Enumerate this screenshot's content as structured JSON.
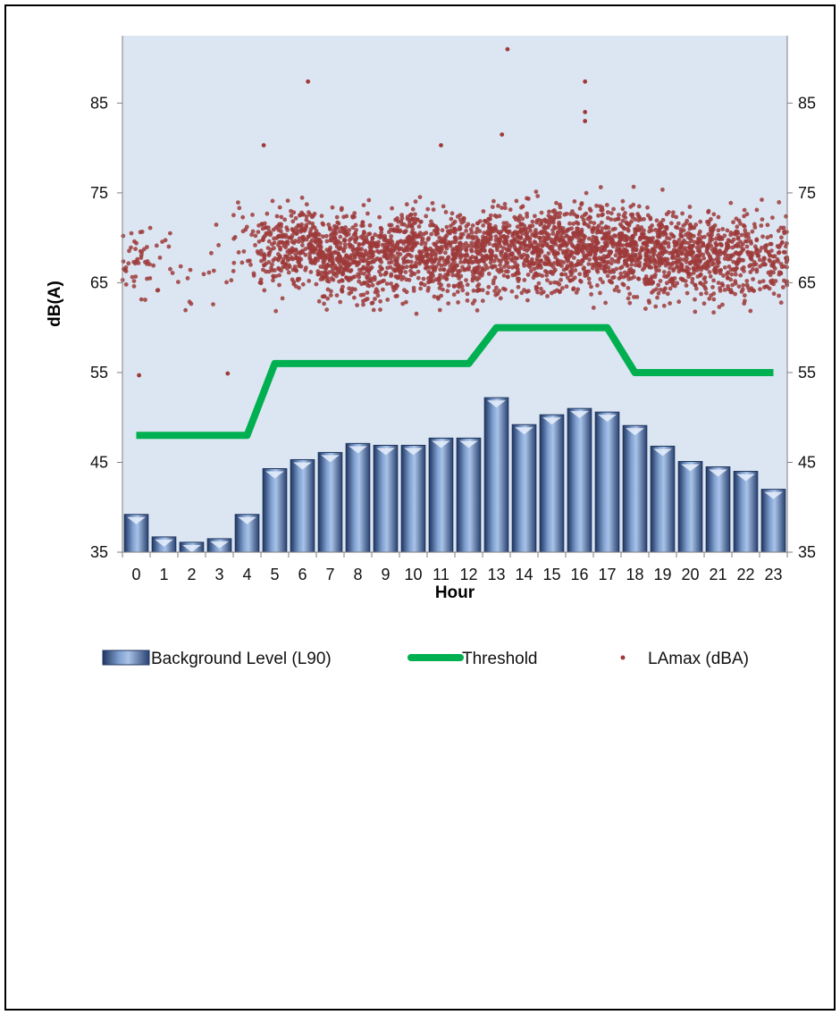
{
  "chart_data": {
    "type": "bar",
    "xlabel": "Hour",
    "ylabel": "dB(A)",
    "ylim": [
      35,
      92.5
    ],
    "y_ticks": [
      35,
      45,
      55,
      65,
      75,
      85
    ],
    "categories": [
      "0",
      "1",
      "2",
      "3",
      "4",
      "5",
      "6",
      "7",
      "8",
      "9",
      "10",
      "11",
      "12",
      "13",
      "14",
      "15",
      "16",
      "17",
      "18",
      "19",
      "20",
      "21",
      "22",
      "23"
    ],
    "grid": false,
    "legend_position": "bottom",
    "series": [
      {
        "name": "Background Level (L90)",
        "type": "bar",
        "color": "#5b7fb6",
        "values": [
          39.2,
          36.7,
          36.1,
          36.5,
          39.2,
          44.3,
          45.3,
          46.1,
          47.1,
          46.9,
          46.9,
          47.7,
          47.7,
          52.2,
          49.2,
          50.3,
          51.0,
          50.6,
          49.1,
          46.8,
          45.1,
          44.5,
          44.0,
          42.0
        ]
      },
      {
        "name": "Threshold",
        "type": "line",
        "color": "#00b050",
        "values": [
          48,
          48,
          48,
          48,
          48,
          56,
          56,
          56,
          56,
          56,
          56,
          56,
          56,
          60,
          60,
          60,
          60,
          60,
          55,
          55,
          55,
          55,
          55,
          55
        ]
      },
      {
        "name": "LAmax (dBA)",
        "type": "scatter",
        "color": "#9e3a3a",
        "hourly_center": [
          67,
          67,
          66,
          66,
          69,
          69,
          69,
          68,
          68,
          68,
          69,
          68,
          68,
          69,
          69,
          69,
          69,
          69,
          69,
          68,
          68,
          68,
          68,
          68
        ],
        "hourly_count": [
          40,
          12,
          8,
          8,
          30,
          120,
          160,
          180,
          190,
          170,
          170,
          175,
          170,
          180,
          185,
          185,
          185,
          190,
          200,
          190,
          170,
          150,
          120,
          100
        ],
        "notable_points": [
          {
            "x": 13.4,
            "y": 91
          },
          {
            "x": 16.2,
            "y": 87.4
          },
          {
            "x": 6.2,
            "y": 87.4
          },
          {
            "x": 16.2,
            "y": 84
          },
          {
            "x": 16.2,
            "y": 83
          },
          {
            "x": 13.2,
            "y": 81.5
          },
          {
            "x": 0.1,
            "y": 54.7
          },
          {
            "x": 3.3,
            "y": 54.9
          },
          {
            "x": 4.6,
            "y": 80.3
          },
          {
            "x": 11.0,
            "y": 80.3
          }
        ]
      }
    ]
  }
}
